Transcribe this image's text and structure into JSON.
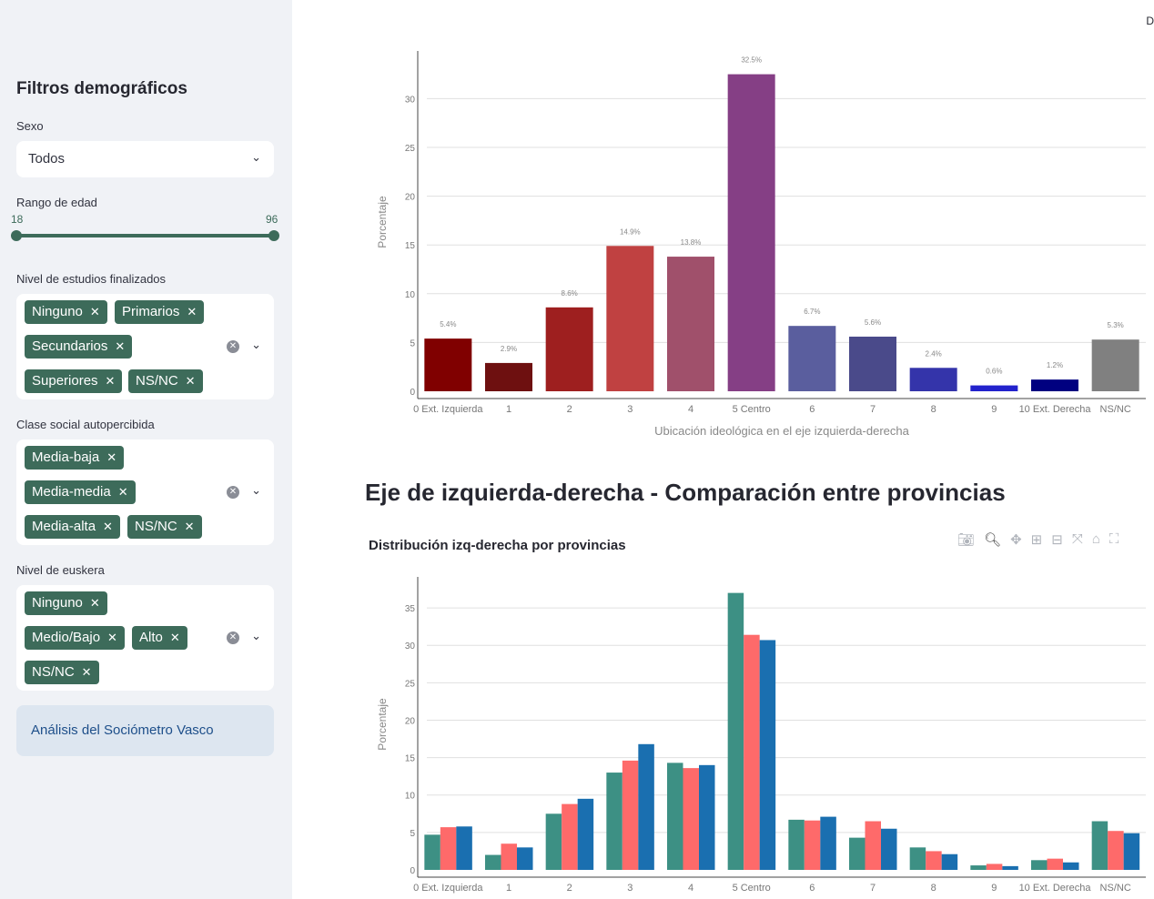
{
  "sidebar": {
    "title": "Filtros demográficos",
    "sexo": {
      "label": "Sexo",
      "value": "Todos"
    },
    "edad": {
      "label": "Rango de edad",
      "min": "18",
      "max": "96"
    },
    "estudios": {
      "label": "Nivel de estudios finalizados",
      "tags": [
        "Ninguno",
        "Primarios",
        "Secundarios",
        "Superiores",
        "NS/NC"
      ]
    },
    "clase": {
      "label": "Clase social autopercibida",
      "tags": [
        "Media-baja",
        "Media-media",
        "Media-alta",
        "NS/NC"
      ]
    },
    "euskera": {
      "label": "Nivel de euskera",
      "tags": [
        "Ninguno",
        "Medio/Bajo",
        "Alto",
        "NS/NC"
      ]
    },
    "info": "Análisis del Sociómetro Vasco"
  },
  "corner_text": "D",
  "section_title": "Eje de izquierda-derecha - Comparación entre provincias",
  "chart_data": [
    {
      "type": "bar",
      "title": "",
      "xlabel": "Ubicación ideológica en el eje izquierda-derecha",
      "ylabel": "Porcentaje",
      "categories": [
        "0 Ext. Izquierda",
        "1",
        "2",
        "3",
        "4",
        "5 Centro",
        "6",
        "7",
        "8",
        "9",
        "10 Ext. Derecha",
        "NS/NC"
      ],
      "values": [
        5.4,
        2.9,
        8.6,
        14.9,
        13.8,
        32.5,
        6.7,
        5.6,
        2.4,
        0.6,
        1.2,
        5.3
      ],
      "data_labels": [
        "5.4%",
        "2.9%",
        "8.6%",
        "14.9%",
        "13.8%",
        "32.5%",
        "6.7%",
        "5.6%",
        "2.4%",
        "0.6%",
        "1.2%",
        "5.3%"
      ],
      "colors": [
        "#800000",
        "#6e1010",
        "#9e1f1f",
        "#c04141",
        "#a0506b",
        "#853f85",
        "#5a5e9e",
        "#4a4a8a",
        "#3434aa",
        "#2222cc",
        "#000080",
        "#808080"
      ],
      "ylim": [
        0,
        34.7
      ],
      "yticks": [
        0,
        5,
        10,
        15,
        20,
        25,
        30
      ],
      "grid": true
    },
    {
      "type": "bar",
      "title": "Distribución izq-derecha por provincias",
      "xlabel": "",
      "ylabel": "Porcentaje",
      "categories": [
        "0 Ext. Izquierda",
        "1",
        "2",
        "3",
        "4",
        "5 Centro",
        "6",
        "7",
        "8",
        "9",
        "10 Ext. Derecha",
        "NS/NC"
      ],
      "series": [
        {
          "color": "#3d9084",
          "values": [
            4.7,
            2.0,
            7.5,
            13.0,
            14.3,
            37.0,
            6.7,
            4.3,
            3.0,
            0.6,
            1.3,
            6.5
          ]
        },
        {
          "color": "#fe6a6a",
          "values": [
            5.7,
            3.5,
            8.8,
            14.6,
            13.6,
            31.4,
            6.6,
            6.5,
            2.5,
            0.8,
            1.5,
            5.2
          ]
        },
        {
          "color": "#1a6fb0",
          "values": [
            5.8,
            3.0,
            9.5,
            16.8,
            14.0,
            30.7,
            7.1,
            5.5,
            2.1,
            0.5,
            1.0,
            4.9
          ]
        }
      ],
      "ylim": [
        0,
        38.9
      ],
      "yticks": [
        0,
        5,
        10,
        15,
        20,
        25,
        30,
        35
      ],
      "grid": true,
      "legend": "none"
    }
  ],
  "toolbar_icons": [
    "camera-icon",
    "zoom-icon",
    "pan-icon",
    "zoom-in-icon",
    "zoom-out-icon",
    "autoscale-icon",
    "reset-icon",
    "fullscreen-icon"
  ]
}
